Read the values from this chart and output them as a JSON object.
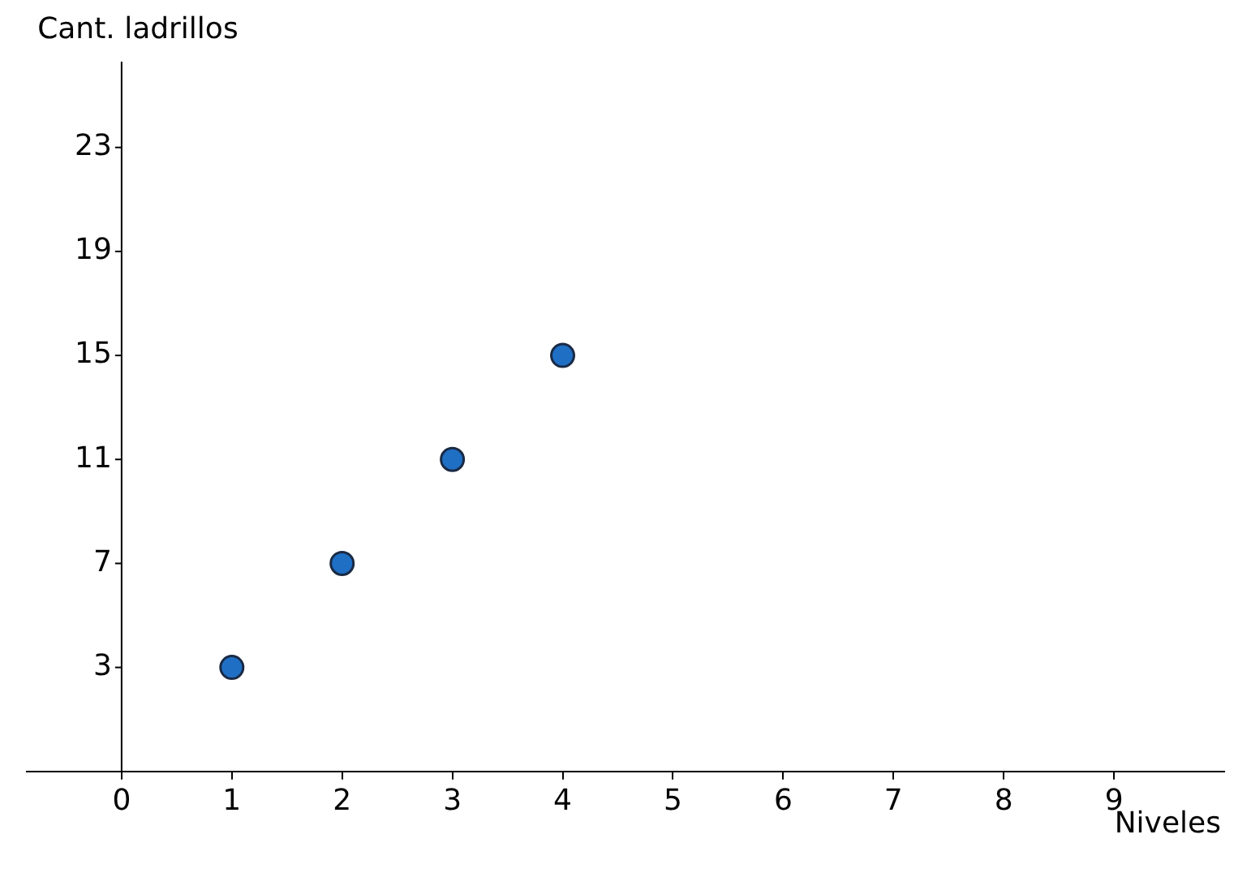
{
  "chart_data": {
    "type": "scatter",
    "xlabel": "Niveles",
    "ylabel": "Cant. ladrillos",
    "x": [
      1,
      2,
      3,
      4
    ],
    "series": [
      {
        "color": "#1f6fc5",
        "values": [
          3,
          7,
          11,
          15
        ]
      }
    ],
    "xlim": [
      -0.86,
      10
    ],
    "xticks": [
      {
        "value": 0,
        "label": "0"
      },
      1,
      2,
      3,
      4,
      5,
      6,
      7,
      8,
      9
    ],
    "ylim": [
      -1,
      26.3
    ],
    "yticks": [
      3,
      7,
      11,
      15,
      19,
      23
    ],
    "grid": false,
    "legend": false,
    "marker": "circle"
  }
}
